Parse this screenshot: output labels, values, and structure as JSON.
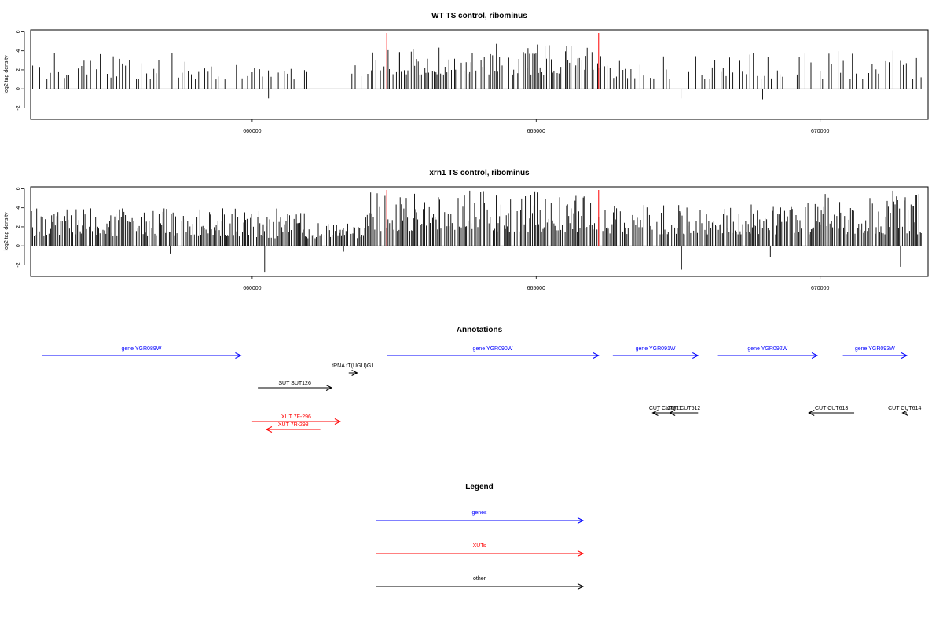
{
  "chart_data": [
    {
      "type": "bar",
      "title": "WT TS control, ribominus",
      "ylabel": "log2 tag density",
      "xlabel": "",
      "xlim": [
        656100,
        671900
      ],
      "ylim": [
        -3.2,
        6.2
      ],
      "y_ticks": [
        -2,
        0,
        2,
        4,
        6
      ],
      "x_ticks": [
        660000,
        665000,
        670000
      ],
      "x_tick_labels": [
        "660000",
        "665000",
        "670000"
      ],
      "markers": [
        662370,
        666100
      ],
      "marker_color": "#ff0000",
      "density": "sparse",
      "note_values": "dense per-position signal; individual bars generated from binned estimates",
      "bins": [
        {
          "x0": 656100,
          "x1": 658000,
          "ymin": 1.0,
          "ymax": 4.0,
          "neg": 0
        },
        {
          "x0": 658000,
          "x1": 660000,
          "ymin": 1.0,
          "ymax": 3.8,
          "neg": 0
        },
        {
          "x0": 660000,
          "x1": 661000,
          "ymin": 1.0,
          "ymax": 2.2,
          "neg": -1.0
        },
        {
          "x0": 661700,
          "x1": 662100,
          "ymin": 1.2,
          "ymax": 3.5,
          "neg": 0
        },
        {
          "x0": 662100,
          "x1": 666100,
          "ymin": 1.5,
          "ymax": 4.8,
          "neg": 0
        },
        {
          "x0": 666100,
          "x1": 668000,
          "ymin": 1.0,
          "ymax": 3.5,
          "neg": -1.0
        },
        {
          "x0": 668000,
          "x1": 670000,
          "ymin": 1.0,
          "ymax": 3.8,
          "neg": -1.1
        },
        {
          "x0": 670000,
          "x1": 671800,
          "ymin": 1.0,
          "ymax": 4.1,
          "neg": 0
        }
      ]
    },
    {
      "type": "bar",
      "title": "xrn1 TS control, ribominus",
      "ylabel": "log2 tag density",
      "xlabel": "",
      "xlim": [
        656100,
        671900
      ],
      "ylim": [
        -3.2,
        6.2
      ],
      "y_ticks": [
        -2,
        0,
        2,
        4,
        6
      ],
      "x_ticks": [
        660000,
        665000,
        670000
      ],
      "x_tick_labels": [
        "660000",
        "665000",
        "670000"
      ],
      "markers": [
        662370,
        666100
      ],
      "marker_color": "#ff0000",
      "density": "dense",
      "bins": [
        {
          "x0": 656100,
          "x1": 660000,
          "ymin": 1.0,
          "ymax": 4.0,
          "neg": -0.8
        },
        {
          "x0": 660000,
          "x1": 661000,
          "ymin": 0.8,
          "ymax": 4.0,
          "neg": -2.8
        },
        {
          "x0": 661000,
          "x1": 662000,
          "ymin": 0.8,
          "ymax": 2.5,
          "neg": -0.6
        },
        {
          "x0": 662000,
          "x1": 666100,
          "ymin": 1.5,
          "ymax": 5.8,
          "neg": 0
        },
        {
          "x0": 666100,
          "x1": 668000,
          "ymin": 1.2,
          "ymax": 4.3,
          "neg": -2.5
        },
        {
          "x0": 668000,
          "x1": 670000,
          "ymin": 1.2,
          "ymax": 4.5,
          "neg": -1.2
        },
        {
          "x0": 670000,
          "x1": 671800,
          "ymin": 1.2,
          "ymax": 5.9,
          "neg": -2.2
        }
      ]
    }
  ],
  "annotations": {
    "title": "Annotations",
    "features": [
      {
        "label": "gene YGR089W",
        "color": "#0000ff",
        "x0": 656300,
        "x1": 659800,
        "row": 0,
        "dir": "+"
      },
      {
        "label": "gene YGR090W",
        "color": "#0000ff",
        "x0": 662370,
        "x1": 666100,
        "row": 0,
        "dir": "+"
      },
      {
        "label": "gene YGR091W",
        "color": "#0000ff",
        "x0": 666350,
        "x1": 667850,
        "row": 0,
        "dir": "+"
      },
      {
        "label": "gene YGR092W",
        "color": "#0000ff",
        "x0": 668200,
        "x1": 669950,
        "row": 0,
        "dir": "+"
      },
      {
        "label": "gene YGR093W",
        "color": "#0000ff",
        "x0": 670400,
        "x1": 671950,
        "row": 0,
        "dir": "+"
      },
      {
        "label": "tRNA tT(UGU)G1",
        "color": "#000000",
        "x0": 661700,
        "x1": 661850,
        "row": 1,
        "dir": "+"
      },
      {
        "label": "SUT SUT126",
        "color": "#000000",
        "x0": 660100,
        "x1": 661400,
        "row": 2,
        "dir": "+"
      },
      {
        "label": "CUT CUT611",
        "color": "#000000",
        "x0": 667050,
        "x1": 667500,
        "row": 3,
        "dir": "-"
      },
      {
        "label": "CUT CUT612",
        "color": "#000000",
        "x0": 667350,
        "x1": 667850,
        "row": 3,
        "dir": "-"
      },
      {
        "label": "CUT CUT613",
        "color": "#000000",
        "x0": 669800,
        "x1": 670600,
        "row": 3,
        "dir": "-"
      },
      {
        "label": "CUT CUT614",
        "color": "#000000",
        "x0": 671450,
        "x1": 671950,
        "row": 3,
        "dir": "-"
      },
      {
        "label": "XUT 7F-296",
        "color": "#ff0000",
        "x0": 660000,
        "x1": 661550,
        "row": 4,
        "dir": "+"
      },
      {
        "label": "XUT 7R-298",
        "color": "#ff0000",
        "x0": 660250,
        "x1": 661200,
        "row": 5,
        "dir": "-"
      }
    ]
  },
  "legend": {
    "title": "Legend",
    "items": [
      {
        "label": "genes",
        "color": "#0000ff"
      },
      {
        "label": "XUTs",
        "color": "#ff0000"
      },
      {
        "label": "other",
        "color": "#000000"
      }
    ]
  }
}
